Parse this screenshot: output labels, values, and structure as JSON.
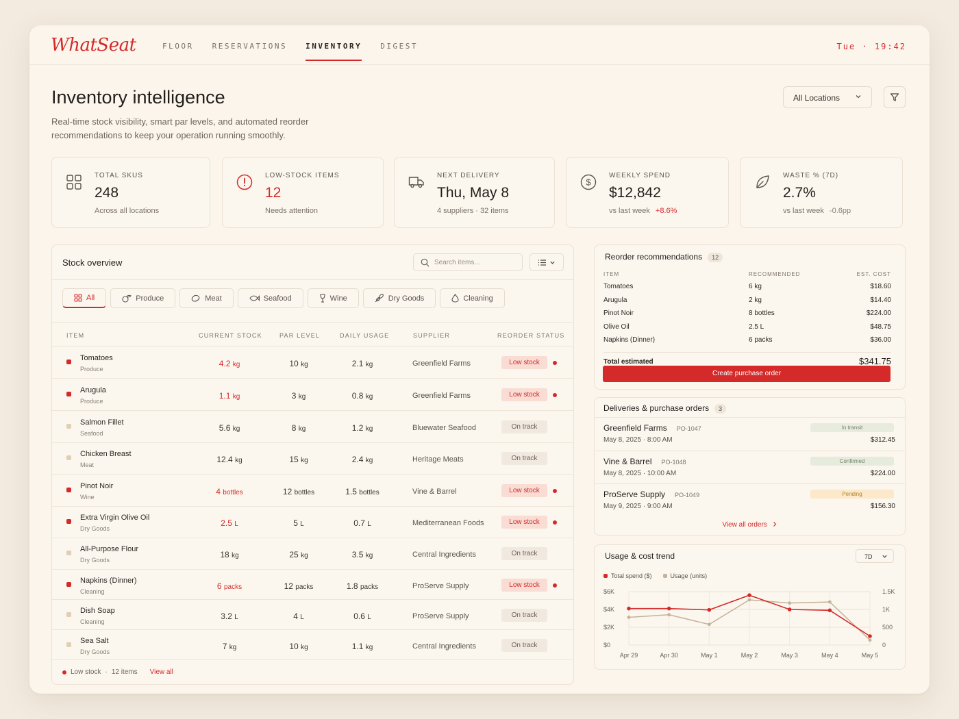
{
  "brand": "WhatSeat",
  "nav": [
    "FLOOR",
    "RESERVATIONS",
    "INVENTORY",
    "DIGEST"
  ],
  "nav_active": "INVENTORY",
  "clock": "Tue · 19:42",
  "page": {
    "title": "Inventory intelligence",
    "subtitle": "Real-time stock visibility, smart par levels, and automated reorder recommendations to keep your operation running smoothly.",
    "location_select": "All Locations"
  },
  "kpis": [
    {
      "icon": "grid-icon",
      "label": "TOTAL SKUS",
      "value": "248",
      "sub": "Across all locations",
      "delta": ""
    },
    {
      "icon": "alert-circle-icon",
      "label": "LOW-STOCK ITEMS",
      "value": "12",
      "sub": "Needs attention",
      "delta": ""
    },
    {
      "icon": "truck-icon",
      "label": "NEXT DELIVERY",
      "value": "Thu, May 8",
      "sub": "4 suppliers · 32 items",
      "delta": ""
    },
    {
      "icon": "dollar-icon",
      "label": "WEEKLY SPEND",
      "value": "$12,842",
      "sub": "vs last week",
      "delta": "+8.6%"
    },
    {
      "icon": "leaf-icon",
      "label": "WASTE % (7D)",
      "value": "2.7%",
      "sub": "vs last week",
      "delta": "-0.6pp"
    }
  ],
  "stock": {
    "title": "Stock overview",
    "search_placeholder": "Search items...",
    "chips": [
      "All",
      "Produce",
      "Meat",
      "Seafood",
      "Wine",
      "Dry Goods",
      "Cleaning"
    ],
    "columns": [
      "ITEM",
      "CURRENT STOCK",
      "PAR LEVEL",
      "DAILY USAGE",
      "SUPPLIER",
      "REORDER STATUS"
    ],
    "rows": [
      {
        "name": "Tomatoes",
        "category": "Produce",
        "current": "4.2",
        "current_unit": "kg",
        "par": "10",
        "par_unit": "kg",
        "usage": "2.1",
        "usage_unit": "kg",
        "supplier": "Greenfield Farms",
        "status": "Low stock",
        "low": true
      },
      {
        "name": "Arugula",
        "category": "Produce",
        "current": "1.1",
        "current_unit": "kg",
        "par": "3",
        "par_unit": "kg",
        "usage": "0.8",
        "usage_unit": "kg",
        "supplier": "Greenfield Farms",
        "status": "Low stock",
        "low": true
      },
      {
        "name": "Salmon Fillet",
        "category": "Seafood",
        "current": "5.6",
        "current_unit": "kg",
        "par": "8",
        "par_unit": "kg",
        "usage": "1.2",
        "usage_unit": "kg",
        "supplier": "Bluewater Seafood",
        "status": "On track",
        "low": false
      },
      {
        "name": "Chicken Breast",
        "category": "Meat",
        "current": "12.4",
        "current_unit": "kg",
        "par": "15",
        "par_unit": "kg",
        "usage": "2.4",
        "usage_unit": "kg",
        "supplier": "Heritage Meats",
        "status": "On track",
        "low": false
      },
      {
        "name": "Pinot Noir",
        "category": "Wine",
        "current": "4",
        "current_unit": "bottles",
        "par": "12",
        "par_unit": "bottles",
        "usage": "1.5",
        "usage_unit": "bottles",
        "supplier": "Vine & Barrel",
        "status": "Low stock",
        "low": true
      },
      {
        "name": "Extra Virgin Olive Oil",
        "category": "Dry Goods",
        "current": "2.5",
        "current_unit": "L",
        "par": "5",
        "par_unit": "L",
        "usage": "0.7",
        "usage_unit": "L",
        "supplier": "Mediterranean Foods",
        "status": "Low stock",
        "low": true
      },
      {
        "name": "All-Purpose Flour",
        "category": "Dry Goods",
        "current": "18",
        "current_unit": "kg",
        "par": "25",
        "par_unit": "kg",
        "usage": "3.5",
        "usage_unit": "kg",
        "supplier": "Central Ingredients",
        "status": "On track",
        "low": false
      },
      {
        "name": "Napkins (Dinner)",
        "category": "Cleaning",
        "current": "6",
        "current_unit": "packs",
        "par": "12",
        "par_unit": "packs",
        "usage": "1.8",
        "usage_unit": "packs",
        "supplier": "ProServe Supply",
        "status": "Low stock",
        "low": true
      },
      {
        "name": "Dish Soap",
        "category": "Cleaning",
        "current": "3.2",
        "current_unit": "L",
        "par": "4",
        "par_unit": "L",
        "usage": "0.6",
        "usage_unit": "L",
        "supplier": "ProServe Supply",
        "status": "On track",
        "low": false
      },
      {
        "name": "Sea Salt",
        "category": "Dry Goods",
        "current": "7",
        "current_unit": "kg",
        "par": "10",
        "par_unit": "kg",
        "usage": "1.1",
        "usage_unit": "kg",
        "supplier": "Central Ingredients",
        "status": "On track",
        "low": false
      }
    ],
    "footer_label": "Low stock",
    "footer_count": "12 items",
    "footer_link": "View all"
  },
  "reorder": {
    "title": "Reorder recommendations",
    "count": "12",
    "columns": [
      "ITEM",
      "RECOMMENDED",
      "EST. COST"
    ],
    "rows": [
      {
        "item": "Tomatoes",
        "qty": "6 kg",
        "cost": "$18.60"
      },
      {
        "item": "Arugula",
        "qty": "2 kg",
        "cost": "$14.40"
      },
      {
        "item": "Pinot Noir",
        "qty": "8 bottles",
        "cost": "$224.00"
      },
      {
        "item": "Olive Oil",
        "qty": "2.5 L",
        "cost": "$48.75"
      },
      {
        "item": "Napkins (Dinner)",
        "qty": "6 packs",
        "cost": "$36.00"
      }
    ],
    "total_label": "Total estimated",
    "total_value": "$341.75",
    "button": "Create purchase order"
  },
  "deliveries": {
    "title": "Deliveries & purchase orders",
    "count": "3",
    "rows": [
      {
        "supplier": "Greenfield Farms",
        "po": "PO-1047",
        "date": "May 8, 2025 · 8:00 AM",
        "status": "In transit",
        "amount": "$312.45"
      },
      {
        "supplier": "Vine & Barrel",
        "po": "PO-1048",
        "date": "May 8, 2025 · 10:00 AM",
        "status": "Confirmed",
        "amount": "$224.00"
      },
      {
        "supplier": "ProServe Supply",
        "po": "PO-1049",
        "date": "May 9, 2025 · 9:00 AM",
        "status": "Pending",
        "amount": "$156.30"
      }
    ],
    "link": "View all orders"
  },
  "trend": {
    "title": "Usage & cost trend",
    "range": "7D"
  },
  "colors": {
    "accent": "#d42a2a",
    "series_usage": "#c4b29a"
  },
  "chart_data": {
    "type": "line",
    "x": [
      "Apr 29",
      "Apr 30",
      "May 1",
      "May 2",
      "May 3",
      "May 4",
      "May 5"
    ],
    "series": [
      {
        "name": "Total spend ($)",
        "axis": "left",
        "values": [
          4100,
          4100,
          3950,
          5600,
          4000,
          3900,
          1000
        ]
      },
      {
        "name": "Usage (units)",
        "axis": "right",
        "values": [
          780,
          850,
          580,
          1270,
          1180,
          1210,
          140
        ]
      }
    ],
    "y_left_ticks": [
      "$0",
      "$2K",
      "$4K",
      "$6K"
    ],
    "y_left_range": [
      0,
      6000
    ],
    "y_right_ticks": [
      "0",
      "500",
      "1K",
      "1.5K"
    ],
    "y_right_range": [
      0,
      1500
    ],
    "grid": true,
    "legend": "top-left"
  }
}
